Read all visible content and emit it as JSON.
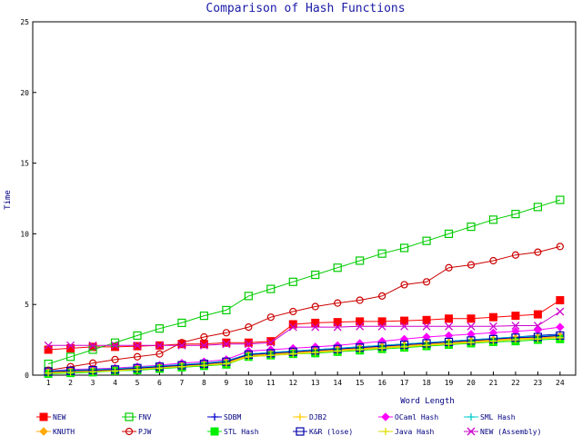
{
  "chart_data": {
    "type": "line",
    "title": "Comparison of Hash Functions",
    "xlabel": "Word Length",
    "ylabel": "Time",
    "x": [
      1,
      2,
      3,
      4,
      5,
      6,
      7,
      8,
      9,
      10,
      11,
      12,
      13,
      14,
      15,
      16,
      17,
      18,
      19,
      20,
      21,
      22,
      23,
      24
    ],
    "xlim": [
      0.3,
      24.7
    ],
    "ylim": [
      0,
      25
    ],
    "yticks": [
      0,
      5,
      10,
      15,
      20,
      25
    ],
    "grid": false,
    "legend_position": "bottom",
    "series": [
      {
        "name": "NEW",
        "color": "#ff0000",
        "marker": "square-filled",
        "values": [
          1.8,
          1.9,
          2.0,
          2.0,
          2.05,
          2.1,
          2.2,
          2.2,
          2.3,
          2.3,
          2.4,
          3.6,
          3.7,
          3.75,
          3.8,
          3.8,
          3.85,
          3.9,
          4.0,
          4.0,
          4.1,
          4.2,
          4.3,
          5.3
        ]
      },
      {
        "name": "FNV",
        "color": "#00cc00",
        "marker": "square-open",
        "values": [
          0.8,
          1.3,
          1.8,
          2.3,
          2.8,
          3.3,
          3.7,
          4.2,
          4.6,
          5.6,
          6.1,
          6.6,
          7.1,
          7.6,
          8.1,
          8.6,
          9.0,
          9.5,
          10.0,
          10.5,
          11.0,
          11.4,
          11.9,
          12.4
        ]
      },
      {
        "name": "SDBM",
        "color": "#0000cc",
        "marker": "plus",
        "values": [
          0.25,
          0.3,
          0.35,
          0.4,
          0.5,
          0.6,
          0.7,
          0.8,
          1.0,
          1.5,
          1.6,
          1.7,
          1.8,
          1.9,
          2.0,
          2.1,
          2.2,
          2.3,
          2.4,
          2.5,
          2.6,
          2.7,
          2.8,
          2.9
        ]
      },
      {
        "name": "DJB2",
        "color": "#ffcc00",
        "marker": "plus",
        "values": [
          0.2,
          0.25,
          0.3,
          0.35,
          0.4,
          0.5,
          0.6,
          0.7,
          0.85,
          1.35,
          1.45,
          1.55,
          1.65,
          1.75,
          1.85,
          1.95,
          2.05,
          2.15,
          2.25,
          2.35,
          2.45,
          2.55,
          2.6,
          2.7
        ]
      },
      {
        "name": "OCaml Hash",
        "color": "#ff00ff",
        "marker": "diamond-filled",
        "values": [
          0.3,
          0.4,
          0.45,
          0.5,
          0.6,
          0.7,
          0.85,
          0.95,
          1.1,
          1.7,
          1.8,
          1.9,
          2.0,
          2.1,
          2.25,
          2.4,
          2.55,
          2.7,
          2.8,
          2.9,
          3.0,
          3.1,
          3.2,
          3.4
        ]
      },
      {
        "name": "SML Hash",
        "color": "#00cccc",
        "marker": "plus",
        "values": [
          0.3,
          0.35,
          0.4,
          0.45,
          0.55,
          0.65,
          0.75,
          0.85,
          1.0,
          1.5,
          1.6,
          1.7,
          1.8,
          1.9,
          2.0,
          2.1,
          2.2,
          2.3,
          2.4,
          2.5,
          2.6,
          2.7,
          2.75,
          2.85
        ]
      },
      {
        "name": "KNUTH",
        "color": "#ffaa00",
        "marker": "diamond-filled",
        "values": [
          0.2,
          0.25,
          0.3,
          0.35,
          0.45,
          0.55,
          0.65,
          0.75,
          0.9,
          1.4,
          1.5,
          1.6,
          1.7,
          1.8,
          1.9,
          2.0,
          2.1,
          2.2,
          2.3,
          2.4,
          2.5,
          2.6,
          2.65,
          2.75
        ]
      },
      {
        "name": "PJW",
        "color": "#cc0000",
        "marker": "circle-open",
        "values": [
          0.35,
          0.6,
          0.85,
          1.1,
          1.3,
          1.5,
          2.3,
          2.7,
          3.0,
          3.4,
          4.1,
          4.5,
          4.85,
          5.1,
          5.3,
          5.6,
          6.4,
          6.6,
          7.6,
          7.8,
          8.1,
          8.5,
          8.7,
          9.1
        ]
      },
      {
        "name": "STL Hash",
        "color": "#00ee00",
        "marker": "square-filled",
        "values": [
          0.1,
          0.15,
          0.2,
          0.3,
          0.35,
          0.45,
          0.55,
          0.65,
          0.75,
          1.3,
          1.4,
          1.5,
          1.55,
          1.65,
          1.75,
          1.85,
          1.95,
          2.05,
          2.15,
          2.25,
          2.35,
          2.4,
          2.5,
          2.55
        ]
      },
      {
        "name": "K&R (lose)",
        "color": "#0000aa",
        "marker": "square-open",
        "values": [
          0.25,
          0.3,
          0.35,
          0.4,
          0.5,
          0.6,
          0.7,
          0.8,
          0.95,
          1.45,
          1.55,
          1.65,
          1.75,
          1.85,
          1.95,
          2.05,
          2.15,
          2.25,
          2.35,
          2.45,
          2.55,
          2.65,
          2.7,
          2.8
        ]
      },
      {
        "name": "Java Hash",
        "color": "#dddd00",
        "marker": "plus",
        "values": [
          0.15,
          0.2,
          0.25,
          0.3,
          0.4,
          0.5,
          0.6,
          0.7,
          0.8,
          1.3,
          1.4,
          1.5,
          1.6,
          1.7,
          1.8,
          1.9,
          2.0,
          2.1,
          2.2,
          2.3,
          2.4,
          2.5,
          2.55,
          2.65
        ]
      },
      {
        "name": "NEW (Assembly)",
        "color": "#cc00cc",
        "marker": "cross",
        "values": [
          2.1,
          2.1,
          2.1,
          2.1,
          2.1,
          2.1,
          2.1,
          2.1,
          2.2,
          2.2,
          2.3,
          3.4,
          3.4,
          3.4,
          3.45,
          3.45,
          3.45,
          3.45,
          3.45,
          3.45,
          3.45,
          3.5,
          3.5,
          4.5
        ]
      }
    ]
  }
}
